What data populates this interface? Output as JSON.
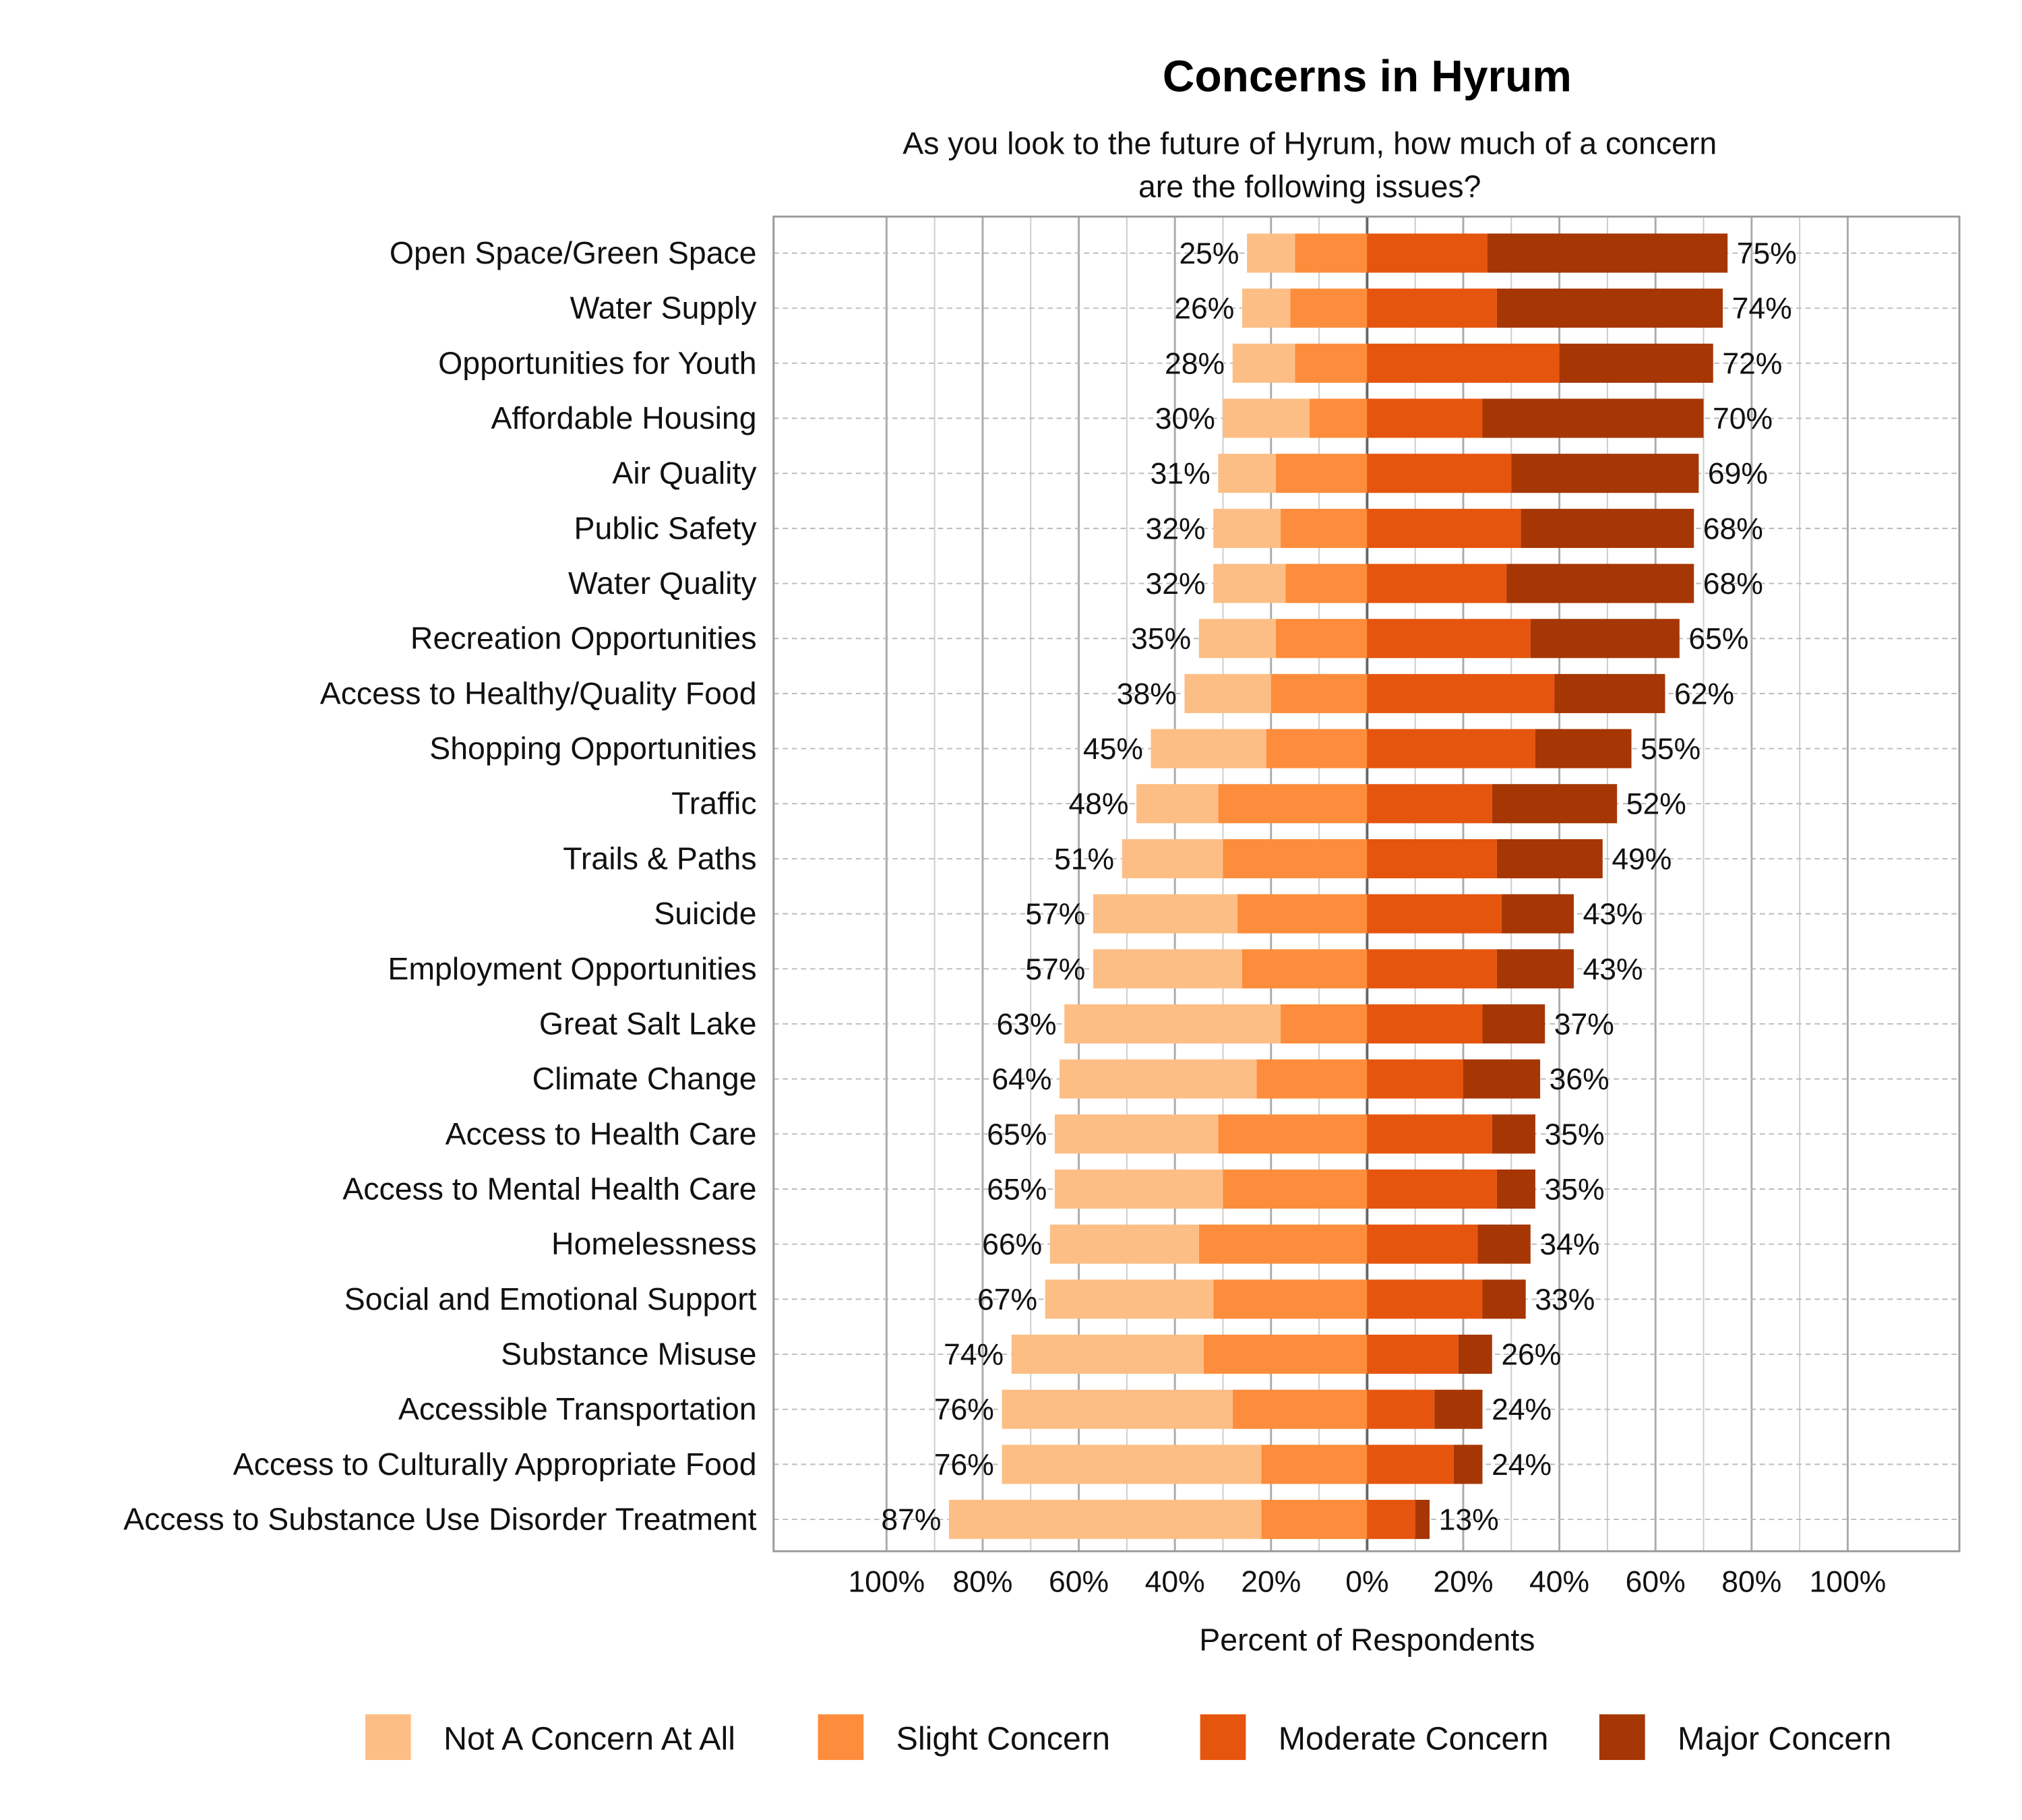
{
  "chart_data": {
    "type": "bar",
    "orientation": "horizontal",
    "stacked": "diverging",
    "title": "Concerns in Hyrum",
    "subtitle": [
      "As you look to the future of Hyrum, how much of a concern",
      "are the following issues?"
    ],
    "xlabel": "Percent of Respondents",
    "ylabel": "",
    "xlim": [
      -100,
      100
    ],
    "xticks": [
      "100%",
      "80%",
      "60%",
      "40%",
      "20%",
      "0%",
      "20%",
      "40%",
      "60%",
      "80%",
      "100%"
    ],
    "grid": true,
    "legend_position": "bottom",
    "categories": [
      "Open Space/Green Space",
      "Water Supply",
      "Opportunities for Youth",
      "Affordable Housing",
      "Air Quality",
      "Public Safety",
      "Water Quality",
      "Recreation Opportunities",
      "Access to Healthy/Quality Food",
      "Shopping Opportunities",
      "Traffic",
      "Trails & Paths",
      "Suicide",
      "Employment Opportunities",
      "Great Salt Lake",
      "Climate Change",
      "Access to Health Care",
      "Access to Mental Health Care",
      "Homelessness",
      "Social and Emotional Support",
      "Substance Misuse",
      "Accessible Transportation",
      "Access to Culturally Appropriate Food",
      "Access to Substance Use Disorder Treatment"
    ],
    "series": [
      {
        "name": "Not A Concern At All",
        "side": "negative",
        "color": "#fdbe85",
        "values": [
          10,
          10,
          13,
          18,
          12,
          14,
          15,
          16,
          18,
          24,
          17,
          21,
          30,
          31,
          45,
          41,
          34,
          35,
          31,
          35,
          40,
          48,
          54,
          65
        ]
      },
      {
        "name": "Slight Concern",
        "side": "negative",
        "color": "#fd8d3c",
        "values": [
          15,
          16,
          15,
          12,
          19,
          18,
          17,
          19,
          20,
          21,
          31,
          30,
          27,
          26,
          18,
          23,
          31,
          30,
          35,
          32,
          34,
          28,
          22,
          22
        ]
      },
      {
        "name": "Moderate Concern",
        "side": "positive",
        "color": "#e6550d",
        "values": [
          25,
          27,
          40,
          24,
          30,
          32,
          29,
          34,
          39,
          35,
          26,
          27,
          28,
          27,
          24,
          20,
          26,
          27,
          23,
          24,
          19,
          14,
          18,
          10
        ]
      },
      {
        "name": "Major Concern",
        "side": "positive",
        "color": "#a63603",
        "values": [
          50,
          47,
          32,
          46,
          39,
          36,
          39,
          31,
          23,
          20,
          26,
          22,
          15,
          16,
          13,
          16,
          9,
          8,
          11,
          9,
          7,
          10,
          6,
          3
        ]
      }
    ],
    "negative_totals": [
      "25%",
      "26%",
      "28%",
      "30%",
      "31%",
      "32%",
      "32%",
      "35%",
      "38%",
      "45%",
      "48%",
      "51%",
      "57%",
      "57%",
      "63%",
      "64%",
      "65%",
      "65%",
      "66%",
      "67%",
      "74%",
      "76%",
      "76%",
      "87%"
    ],
    "positive_totals": [
      "75%",
      "74%",
      "72%",
      "70%",
      "69%",
      "68%",
      "68%",
      "65%",
      "62%",
      "55%",
      "52%",
      "49%",
      "43%",
      "43%",
      "37%",
      "36%",
      "35%",
      "35%",
      "34%",
      "33%",
      "26%",
      "24%",
      "24%",
      "13%"
    ]
  }
}
